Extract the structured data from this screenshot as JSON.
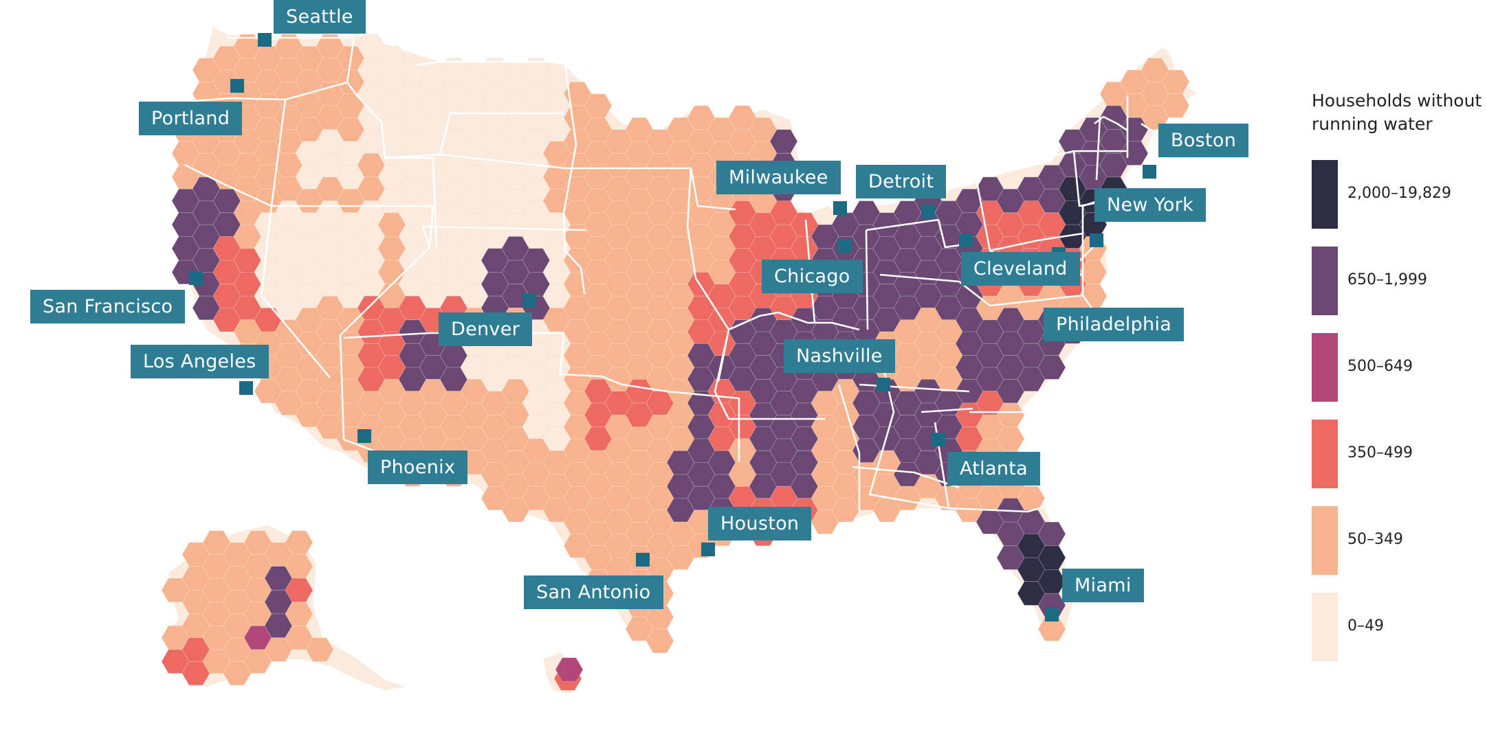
{
  "legend": {
    "title_line1": "Households without",
    "title_line2": "running water",
    "bins": [
      {
        "label": "2,000–19,829",
        "color": "#2f2d45"
      },
      {
        "label": "650–1,999",
        "color": "#6a4873"
      },
      {
        "label": "500–649",
        "color": "#b14778"
      },
      {
        "label": "350–499",
        "color": "#ec6a62"
      },
      {
        "label": "50–349",
        "color": "#f7b38e"
      },
      {
        "label": "0–49",
        "color": "#fbebdf"
      }
    ]
  },
  "cities": [
    {
      "name": "Seattle"
    },
    {
      "name": "Portland"
    },
    {
      "name": "San Francisco"
    },
    {
      "name": "Los Angeles"
    },
    {
      "name": "Phoenix"
    },
    {
      "name": "Denver"
    },
    {
      "name": "San Antonio"
    },
    {
      "name": "Houston"
    },
    {
      "name": "Milwaukee"
    },
    {
      "name": "Chicago"
    },
    {
      "name": "Nashville"
    },
    {
      "name": "Detroit"
    },
    {
      "name": "Cleveland"
    },
    {
      "name": "Atlanta"
    },
    {
      "name": "Miami"
    },
    {
      "name": "Philadelphia"
    },
    {
      "name": "New York"
    },
    {
      "name": "Boston"
    }
  ],
  "colors": {
    "city_label_bg": "#2e7d95",
    "city_marker": "#1c6a84",
    "state_border": "#ffffff"
  }
}
